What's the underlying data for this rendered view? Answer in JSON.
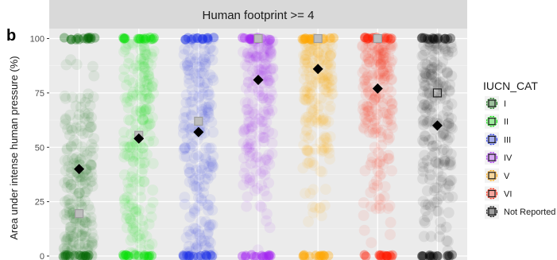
{
  "chart_data": {
    "type": "scatter",
    "panel_label": "b",
    "title": "Human footprint >= 4",
    "xlabel": "",
    "ylabel": "Area under intense human pressure (%)",
    "ylim": [
      0,
      100
    ],
    "y_ticks": [
      0,
      25,
      50,
      75,
      100
    ],
    "x_ticks_visible": false,
    "grid": true,
    "legend": {
      "title": "IUCN_CAT",
      "position": "right",
      "entries": [
        "I",
        "II",
        "III",
        "IV",
        "V",
        "VI",
        "Not Reported"
      ]
    },
    "series": [
      {
        "name": "I",
        "color": "#006400",
        "mean": 40,
        "median": 19.5
      },
      {
        "name": "II",
        "color": "#00e000",
        "mean": 54,
        "median": 55.5
      },
      {
        "name": "III",
        "color": "#1a2fe6",
        "mean": 57,
        "median": 62
      },
      {
        "name": "IV",
        "color": "#a020f0",
        "mean": 81,
        "median": 100
      },
      {
        "name": "V",
        "color": "#ffa500",
        "mean": 86,
        "median": 100
      },
      {
        "name": "VI",
        "color": "#ff1a00",
        "mean": 77,
        "median": 100
      },
      {
        "name": "Not Reported",
        "color": "#000000",
        "mean": 60,
        "median": 75
      }
    ]
  }
}
